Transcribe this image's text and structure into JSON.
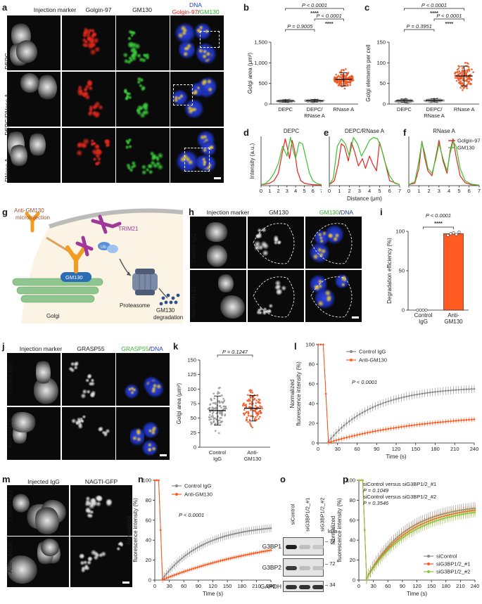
{
  "panels": {
    "a": {
      "letter": "a",
      "columns": [
        "Injection marker",
        "Golgin-97",
        "GM130"
      ],
      "merge_header": {
        "line1": "DNA",
        "line2_a": "Golgin-97",
        "sep": "/",
        "line2_b": "GM130"
      },
      "rows": [
        "DEPC",
        "DEPC/RNase A",
        "RNase A"
      ]
    },
    "h": {
      "letter": "h",
      "columns": [
        "Injection marker",
        "GM130"
      ],
      "merge_header": {
        "a": "GM130",
        "sep": "/",
        "b": "DNA"
      },
      "rows": [
        "Control IgG",
        "Anti-GM130"
      ]
    },
    "j": {
      "letter": "j",
      "columns": [
        "Injection marker",
        "GRASP55"
      ],
      "merge_header": {
        "a": "GRASP55",
        "sep": "/",
        "b": "DNA"
      },
      "rows": [
        "Control IgG",
        "Anti-GM130"
      ]
    },
    "m": {
      "letter": "m",
      "columns": [
        "Injected IgG",
        "NAGTI-GFP"
      ],
      "rows": [
        "Control IgG",
        "Anti-GM130"
      ]
    },
    "g": {
      "letter": "g",
      "labels": {
        "microinjection": "Anti-GM130\nmicroinjection",
        "trim21": "TRIM21",
        "ub": "Ub",
        "golgi": "Golgi",
        "gm130": "GM130",
        "proteasome": "Proteasome",
        "degradation": "GM130\ndegradation"
      },
      "colors": {
        "antibody": "#f39c1f",
        "trim21": "#a0379a",
        "golgi": "#8fc68f",
        "gm130": "#2b6db4",
        "proteasome": "#7b8aa6",
        "dots": "#2b4f8f",
        "bg": "#fbf3e3"
      }
    },
    "o": {
      "letter": "o",
      "lanes": [
        "siControl",
        "siG3BP1/2_#1",
        "siG3BP1/2_#2"
      ],
      "bands": [
        "G3BP1",
        "G3BP2",
        "GAPDH"
      ],
      "kda_label": "kDa",
      "markers": [
        "72",
        "72",
        "34"
      ]
    }
  },
  "chart_data": [
    {
      "id": "b",
      "type": "scatter",
      "letter": "b",
      "categories": [
        "DEPC",
        "DEPC/\nRNase A",
        "RNase A"
      ],
      "ylabel": "Golgi area (μm²)",
      "ylim": [
        0,
        1500
      ],
      "yticks": [
        "0",
        "500",
        "1,000",
        "1,500"
      ],
      "ytick_values": [
        0,
        500,
        1000,
        1500
      ],
      "series": [
        {
          "category": "DEPC",
          "color": "#9b9b9b",
          "mean": 75,
          "sd": 30,
          "min": 10,
          "max": 190,
          "n": 70
        },
        {
          "category": "DEPC/RNase A",
          "color": "#9b9b9b",
          "mean": 80,
          "sd": 30,
          "min": 10,
          "max": 200,
          "n": 70
        },
        {
          "category": "RNase A",
          "color": "#f05a28",
          "mean": 600,
          "sd": 160,
          "min": 230,
          "max": 1080,
          "n": 150
        }
      ],
      "stats": [
        {
          "text": "P < 0.0001",
          "from": 0,
          "to": 2,
          "level": 3
        },
        {
          "text": "****",
          "from": 0,
          "to": 2,
          "level": 3,
          "stars": true
        },
        {
          "text": "P < 0.0001",
          "from": 1,
          "to": 2,
          "level": 2
        },
        {
          "text": "****",
          "from": 1,
          "to": 2,
          "level": 2,
          "stars": true
        },
        {
          "text": "P = 0.9005",
          "from": 0,
          "to": 1,
          "level": 1
        }
      ]
    },
    {
      "id": "c",
      "type": "scatter",
      "letter": "c",
      "categories": [
        "DEPC",
        "DEPC/\nRNase A",
        "RNase A"
      ],
      "ylabel": "Golgi elements per cell",
      "ylim": [
        0,
        150
      ],
      "yticks": [
        "0",
        "50",
        "100",
        "150"
      ],
      "ytick_values": [
        0,
        50,
        100,
        150
      ],
      "series": [
        {
          "category": "DEPC",
          "color": "#9b9b9b",
          "mean": 8,
          "sd": 4,
          "min": 1,
          "max": 18,
          "n": 70
        },
        {
          "category": "DEPC/RNase A",
          "color": "#9b9b9b",
          "mean": 9,
          "sd": 4,
          "min": 1,
          "max": 20,
          "n": 70
        },
        {
          "category": "RNase A",
          "color": "#f05a28",
          "mean": 68,
          "sd": 24,
          "min": 15,
          "max": 135,
          "n": 130
        }
      ],
      "stats": [
        {
          "text": "P < 0.0001",
          "from": 0,
          "to": 2,
          "level": 3
        },
        {
          "text": "****",
          "from": 0,
          "to": 2,
          "level": 3,
          "stars": true
        },
        {
          "text": "P < 0.0001",
          "from": 1,
          "to": 2,
          "level": 2
        },
        {
          "text": "****",
          "from": 1,
          "to": 2,
          "level": 2,
          "stars": true
        },
        {
          "text": "P = 0.3951",
          "from": 0,
          "to": 1,
          "level": 1
        }
      ]
    },
    {
      "id": "d",
      "type": "line",
      "letter": "d",
      "title": "DEPC",
      "ylabel": "Intensity (a.u.)",
      "xlabel": "",
      "xlim": [
        0,
        7
      ],
      "ylim": [
        0,
        100
      ],
      "xticks": [
        "0",
        "1",
        "2",
        "3",
        "4",
        "5",
        "6",
        "7"
      ],
      "series": [
        {
          "name": "Golgin-97",
          "color": "#e8231f",
          "x": [
            0,
            0.5,
            1,
            1.5,
            2,
            2.5,
            2.8,
            3.0,
            3.3,
            3.6,
            3.9,
            4.2,
            4.6,
            5,
            5.5,
            6,
            7
          ],
          "y": [
            2,
            3,
            5,
            10,
            25,
            70,
            95,
            80,
            55,
            92,
            70,
            30,
            10,
            5,
            3,
            2,
            1
          ]
        },
        {
          "name": "GM130",
          "color": "#39c230",
          "x": [
            0,
            0.5,
            1,
            1.5,
            2,
            2.5,
            3.0,
            3.4,
            3.7,
            4.0,
            4.4,
            4.8,
            5.2,
            5.6,
            6,
            6.5,
            7
          ],
          "y": [
            2,
            4,
            12,
            25,
            45,
            80,
            60,
            98,
            72,
            55,
            88,
            85,
            55,
            25,
            10,
            4,
            2
          ]
        }
      ]
    },
    {
      "id": "e",
      "type": "line",
      "letter": "e",
      "title": "DEPC/RNase A",
      "xlabel": "Distance (μm)",
      "xlim": [
        0,
        7
      ],
      "ylim": [
        0,
        100
      ],
      "xticks": [
        "0",
        "1",
        "2",
        "3",
        "4",
        "5",
        "6",
        "7"
      ],
      "series": [
        {
          "name": "Golgin-97",
          "color": "#e8231f",
          "x": [
            0,
            0.5,
            0.9,
            1.2,
            1.5,
            1.9,
            2.2,
            2.5,
            2.9,
            3.3,
            3.6,
            4.0,
            4.3,
            4.7,
            5.0,
            5.4,
            6,
            7
          ],
          "y": [
            2,
            10,
            45,
            85,
            80,
            50,
            88,
            70,
            40,
            55,
            35,
            60,
            45,
            30,
            88,
            60,
            10,
            2
          ]
        },
        {
          "name": "GM130",
          "color": "#39c230",
          "x": [
            0,
            0.4,
            0.8,
            1.2,
            1.6,
            2.0,
            2.4,
            2.8,
            3.2,
            3.6,
            4.0,
            4.4,
            4.8,
            5.2,
            5.5,
            6,
            6.5,
            7
          ],
          "y": [
            2,
            15,
            80,
            95,
            85,
            60,
            98,
            85,
            60,
            75,
            92,
            98,
            95,
            75,
            50,
            20,
            5,
            2
          ]
        }
      ]
    },
    {
      "id": "f",
      "type": "line",
      "letter": "f",
      "title": "RNase A",
      "xlabel": "",
      "xlim": [
        0,
        7
      ],
      "ylim": [
        0,
        100
      ],
      "xticks": [
        "0",
        "1",
        "2",
        "3",
        "4",
        "5",
        "6",
        "7"
      ],
      "series": [
        {
          "name": "Golgin-97",
          "color": "#e8231f",
          "x": [
            0,
            0.6,
            1.0,
            1.3,
            1.6,
            1.9,
            2.3,
            2.7,
            3.0,
            3.4,
            3.8,
            4.1,
            4.4,
            4.7,
            5.1,
            5.6,
            6.2,
            7
          ],
          "y": [
            2,
            5,
            35,
            90,
            55,
            30,
            20,
            60,
            92,
            50,
            25,
            70,
            95,
            60,
            20,
            6,
            2,
            1
          ]
        },
        {
          "name": "GM130",
          "color": "#39c230",
          "x": [
            0,
            0.6,
            1.0,
            1.3,
            1.6,
            1.9,
            2.3,
            2.7,
            3.0,
            3.4,
            3.8,
            4.1,
            4.4,
            4.7,
            5.1,
            5.6,
            6.2,
            7
          ],
          "y": [
            2,
            8,
            50,
            88,
            65,
            35,
            25,
            55,
            85,
            55,
            30,
            65,
            90,
            80,
            35,
            10,
            3,
            1
          ]
        }
      ],
      "legend": {
        "placement": "top-right",
        "entries": [
          "Golgin-97",
          "GM130"
        ]
      }
    },
    {
      "id": "i",
      "type": "bar",
      "letter": "i",
      "categories": [
        "Control\nIgG",
        "Anti-\nGM130"
      ],
      "values": [
        0,
        97
      ],
      "colors": [
        "#ffffff",
        "#ff5a1f"
      ],
      "ylabel": "Degradation efficiency (%)",
      "ylim": [
        0,
        100
      ],
      "yticks": [
        "0",
        "50",
        "100"
      ],
      "ytick_values": [
        0,
        50,
        100
      ],
      "points": [
        [
          0,
          0,
          0,
          0
        ],
        [
          95,
          97,
          98,
          96,
          99
        ]
      ],
      "stats": [
        {
          "text": "P < 0.0001"
        },
        {
          "text": "****",
          "stars": true
        }
      ]
    },
    {
      "id": "k",
      "type": "scatter",
      "letter": "k",
      "categories": [
        "Control\nIgG",
        "Anti-\nGM130"
      ],
      "ylabel": "Golgi area (μm²)",
      "ylim": [
        0,
        150
      ],
      "yticks": [
        "0",
        "25",
        "50",
        "75",
        "100",
        "125",
        "150"
      ],
      "ytick_values": [
        0,
        25,
        50,
        75,
        100,
        125,
        150
      ],
      "series": [
        {
          "category": "Control IgG",
          "color": "#9b9b9b",
          "mean": 63,
          "sd": 25,
          "min": 8,
          "max": 125,
          "n": 110
        },
        {
          "category": "Anti-GM130",
          "color": "#f05a28",
          "mean": 67,
          "sd": 22,
          "min": 18,
          "max": 122,
          "n": 110
        }
      ],
      "stats": [
        {
          "text": "P = 0.1247"
        }
      ]
    },
    {
      "id": "l",
      "type": "line",
      "letter": "l",
      "ylabel": "Normalized\nfluorescence intensity (%)",
      "xlabel": "Time (s)",
      "xlim": [
        0,
        240
      ],
      "ylim": [
        0,
        100
      ],
      "xticks": [
        "0",
        "30",
        "60",
        "90",
        "120",
        "150",
        "180",
        "210",
        "240"
      ],
      "yticks": [
        "0",
        "20",
        "40",
        "60",
        "80",
        "100"
      ],
      "annotation": "P < 0.0001",
      "series": [
        {
          "name": "Control IgG",
          "color": "#8a8a8a",
          "bleach": 14,
          "plateau": 55,
          "tau": 70,
          "err": 4
        },
        {
          "name": "Anti-GM130",
          "color": "#ff5a1f",
          "bleach": 14,
          "plateau": 24,
          "tau": 150,
          "err": 2.5
        }
      ],
      "legend": {
        "placement": "top-left"
      }
    },
    {
      "id": "n",
      "type": "line",
      "letter": "n",
      "ylabel": "Normalized\nfluorescence intensity (%)",
      "xlabel": "Time (s)",
      "xlim": [
        0,
        240
      ],
      "ylim": [
        0,
        100
      ],
      "xticks": [
        "0",
        "30",
        "60",
        "90",
        "120",
        "150",
        "180",
        "210",
        "240"
      ],
      "yticks": [
        "0",
        "20",
        "40",
        "60",
        "80",
        "100"
      ],
      "annotation": "P < 0.0001",
      "series": [
        {
          "name": "Control IgG",
          "color": "#8a8a8a",
          "bleach": 14,
          "plateau": 52,
          "tau": 85,
          "err": 4
        },
        {
          "name": "Anti-GM130",
          "color": "#ff5a1f",
          "bleach": 14,
          "plateau": 30,
          "tau": 260,
          "err": 2
        }
      ],
      "legend": {
        "placement": "top-left"
      }
    },
    {
      "id": "p",
      "type": "line",
      "letter": "p",
      "ylabel": "Normalized\nfluorescence intensity (%)",
      "xlabel": "Time (s)",
      "xlim": [
        0,
        240
      ],
      "ylim": [
        0,
        100
      ],
      "xticks": [
        "0",
        "30",
        "60",
        "90",
        "120",
        "150",
        "180",
        "210",
        "240"
      ],
      "yticks": [
        "0",
        "20",
        "40",
        "60",
        "80",
        "100"
      ],
      "annotation_lines": [
        "siControl versus siG3BP1/2_#1",
        "P = 0.1049",
        "siControl versus siG3BP1/2_#2",
        "P = 0.3546"
      ],
      "series": [
        {
          "name": "siControl",
          "color": "#8a8a8a",
          "bleach": 14,
          "plateau": 72,
          "tau": 80,
          "err": 6
        },
        {
          "name": "siG3BP1/2_#1",
          "color": "#ff5a1f",
          "bleach": 14,
          "plateau": 70,
          "tau": 85,
          "err": 5
        },
        {
          "name": "siG3BP1/2_#2",
          "color": "#8bc53f",
          "bleach": 14,
          "plateau": 68,
          "tau": 90,
          "err": 5
        }
      ],
      "legend": {
        "placement": "bottom-right"
      }
    }
  ]
}
